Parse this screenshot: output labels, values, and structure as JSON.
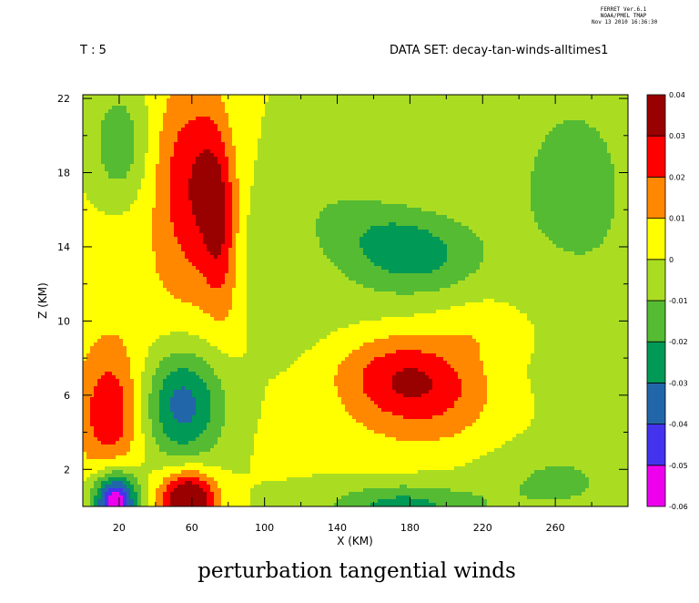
{
  "header": {
    "stamp_lines": [
      "FERRET Ver.6.1",
      "NOAA/PMEL TMAP",
      "Nov 13 2010 16:36:30"
    ],
    "time_label": "T : 5",
    "dataset_label": "DATA SET: decay-tan-winds-alltimes1"
  },
  "chart_data": {
    "type": "contour",
    "title": "perturbation tangential winds",
    "xlabel": "X (KM)",
    "ylabel": "Z (KM)",
    "xlim": [
      0,
      300
    ],
    "ylim": [
      0,
      22.2
    ],
    "xticks": [
      20,
      60,
      100,
      140,
      180,
      220,
      260
    ],
    "yticks": [
      2,
      6,
      10,
      14,
      18,
      22
    ],
    "colorbar": {
      "levels": [
        -0.06,
        -0.05,
        -0.04,
        -0.03,
        -0.02,
        -0.01,
        0,
        0.01,
        0.02,
        0.03,
        0.04
      ],
      "labels": [
        "-0.06",
        "-0.05",
        "-0.04",
        "-0.03",
        "-0.02",
        "-0.01",
        "0",
        "0.01",
        "0.02",
        "0.03",
        "0.04"
      ],
      "colors": [
        "#ee00ee",
        "#4433ee",
        "#2266aa",
        "#009955",
        "#55bb33",
        "#aadd22",
        "#ffff00",
        "#ff8800",
        "#ff0000",
        "#990000"
      ]
    },
    "features": [
      {
        "x": 150,
        "y": 10.5,
        "sx": 50,
        "sy": 3.6,
        "a": -0.006,
        "rot": 0.0
      },
      {
        "x": 180,
        "y": 6.8,
        "sx": 40,
        "sy": 2.6,
        "a": 0.034,
        "rot": 0.12
      },
      {
        "x": 225,
        "y": 9.5,
        "sx": 25,
        "sy": 1.5,
        "a": 0.008,
        "rot": 0.2
      },
      {
        "x": 180,
        "y": 13.8,
        "sx": 38,
        "sy": 2.3,
        "a": -0.027,
        "rot": 0.3
      },
      {
        "x": 220,
        "y": 12,
        "sx": 40,
        "sy": 2.5,
        "a": 0.006,
        "rot": 0.2
      },
      {
        "x": 35,
        "y": 12,
        "sx": 60,
        "sy": 5,
        "a": 0.006,
        "rot": 0.0
      },
      {
        "x": 130,
        "y": 17,
        "sx": 35,
        "sy": 3.5,
        "a": -0.006,
        "rot": -0.3
      },
      {
        "x": 100,
        "y": 12.5,
        "sx": 20,
        "sy": 3.5,
        "a": -0.007,
        "rot": 0.4
      },
      {
        "x": 60,
        "y": 17.5,
        "sx": 20,
        "sy": 5.5,
        "a": 0.027,
        "rot": 0.1
      },
      {
        "x": 75,
        "y": 15.5,
        "sx": 10,
        "sy": 5,
        "a": 0.022,
        "rot": 0.2
      },
      {
        "x": 20,
        "y": 19.5,
        "sx": 15,
        "sy": 3,
        "a": -0.018,
        "rot": 0.0
      },
      {
        "x": 15,
        "y": 5,
        "sx": 18,
        "sy": 3.5,
        "a": 0.028,
        "rot": 0.0
      },
      {
        "x": 55,
        "y": 5.5,
        "sx": 22,
        "sy": 3.0,
        "a": -0.035,
        "rot": 0.0
      },
      {
        "x": 18,
        "y": 0.3,
        "sx": 12,
        "sy": 1.6,
        "a": -0.06,
        "rot": 0.0
      },
      {
        "x": 58,
        "y": 0.4,
        "sx": 15,
        "sy": 1.5,
        "a": 0.05,
        "rot": 0.0
      },
      {
        "x": 175,
        "y": 0,
        "sx": 40,
        "sy": 1.2,
        "a": -0.024,
        "rot": 0.0
      },
      {
        "x": 210,
        "y": 3.5,
        "sx": 90,
        "sy": 2.0,
        "a": 0.004,
        "rot": 0.0
      },
      {
        "x": 270,
        "y": 17,
        "sx": 55,
        "sy": 9,
        "a": -0.012,
        "rot": 0.0
      },
      {
        "x": 260,
        "y": 1.5,
        "sx": 45,
        "sy": 2.5,
        "a": -0.012,
        "rot": 0.0
      }
    ]
  }
}
